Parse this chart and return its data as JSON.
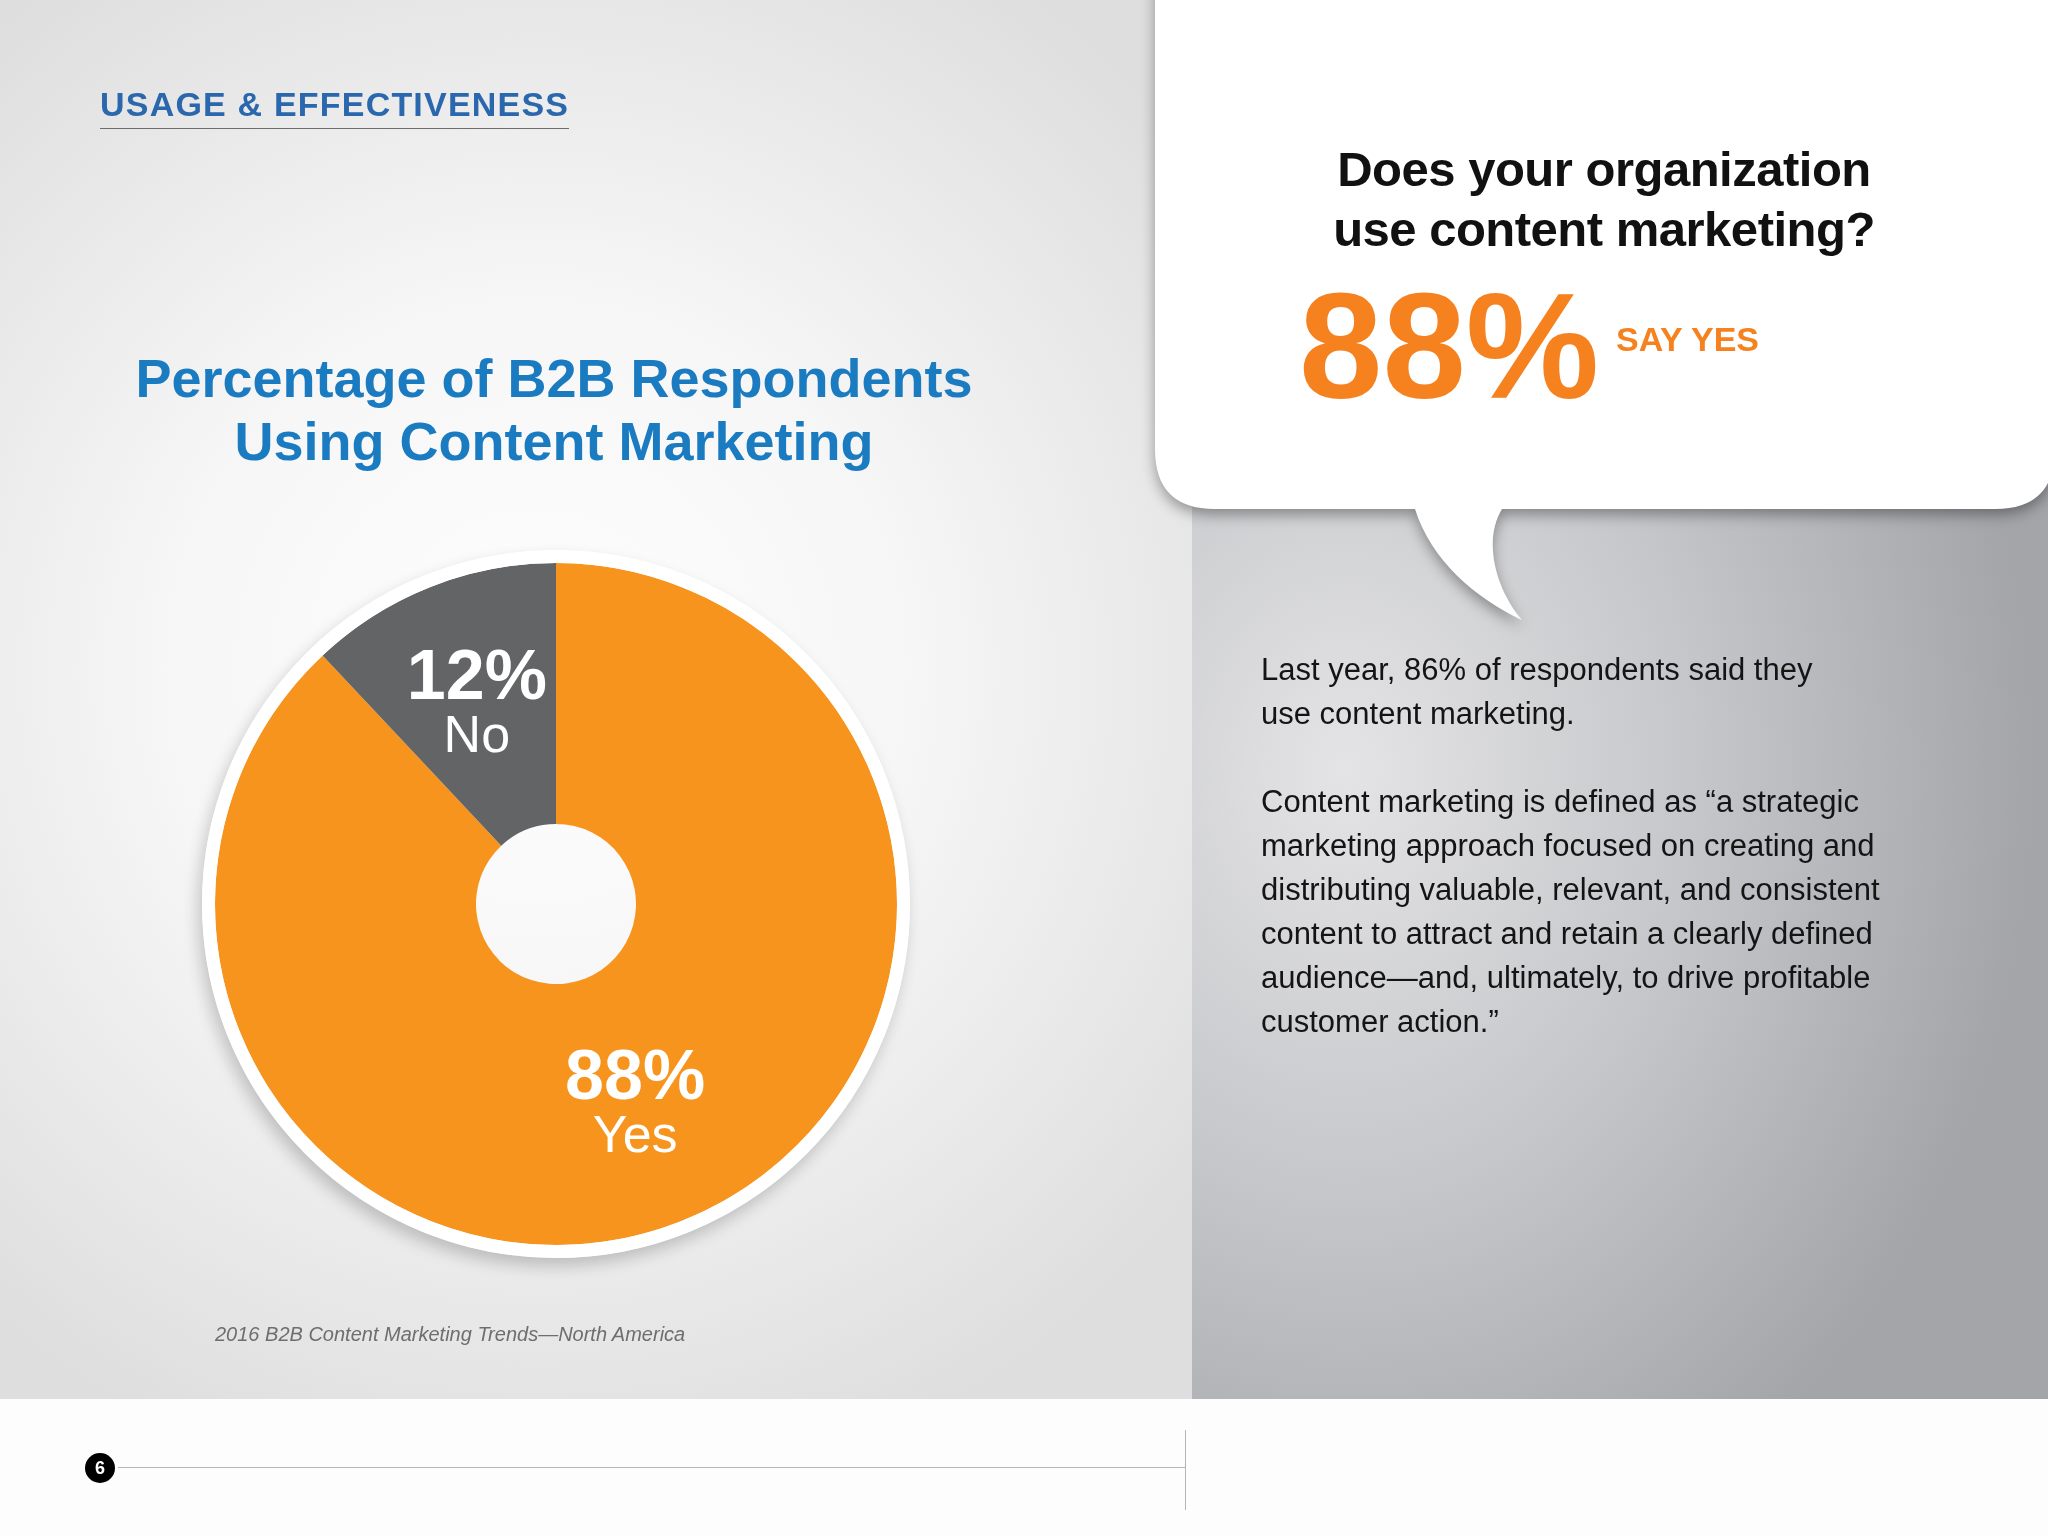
{
  "chart_data": {
    "type": "donut",
    "title": "Percentage of B2B Respondents Using Content Marketing",
    "categories": [
      "Yes",
      "No"
    ],
    "values": [
      88,
      12
    ],
    "colors": [
      "#f7941e",
      "#636466"
    ],
    "value_labels": [
      "88%",
      "12%"
    ],
    "annotations": [
      "USAGE & EFFECTIVENESS",
      "Does your organization use content marketing?",
      "88%",
      "SAY YES",
      "Last year, 86% of respondents said they use content marketing.",
      "Content marketing is defined as “a strategic marketing approach focused on creating and distributing valuable, relevant, and consistent content to attract and retain a clearly defined audience—and, ultimately, to drive profitable customer action.”",
      "2016 B2B Content Marketing Trends—North America",
      "6"
    ]
  }
}
